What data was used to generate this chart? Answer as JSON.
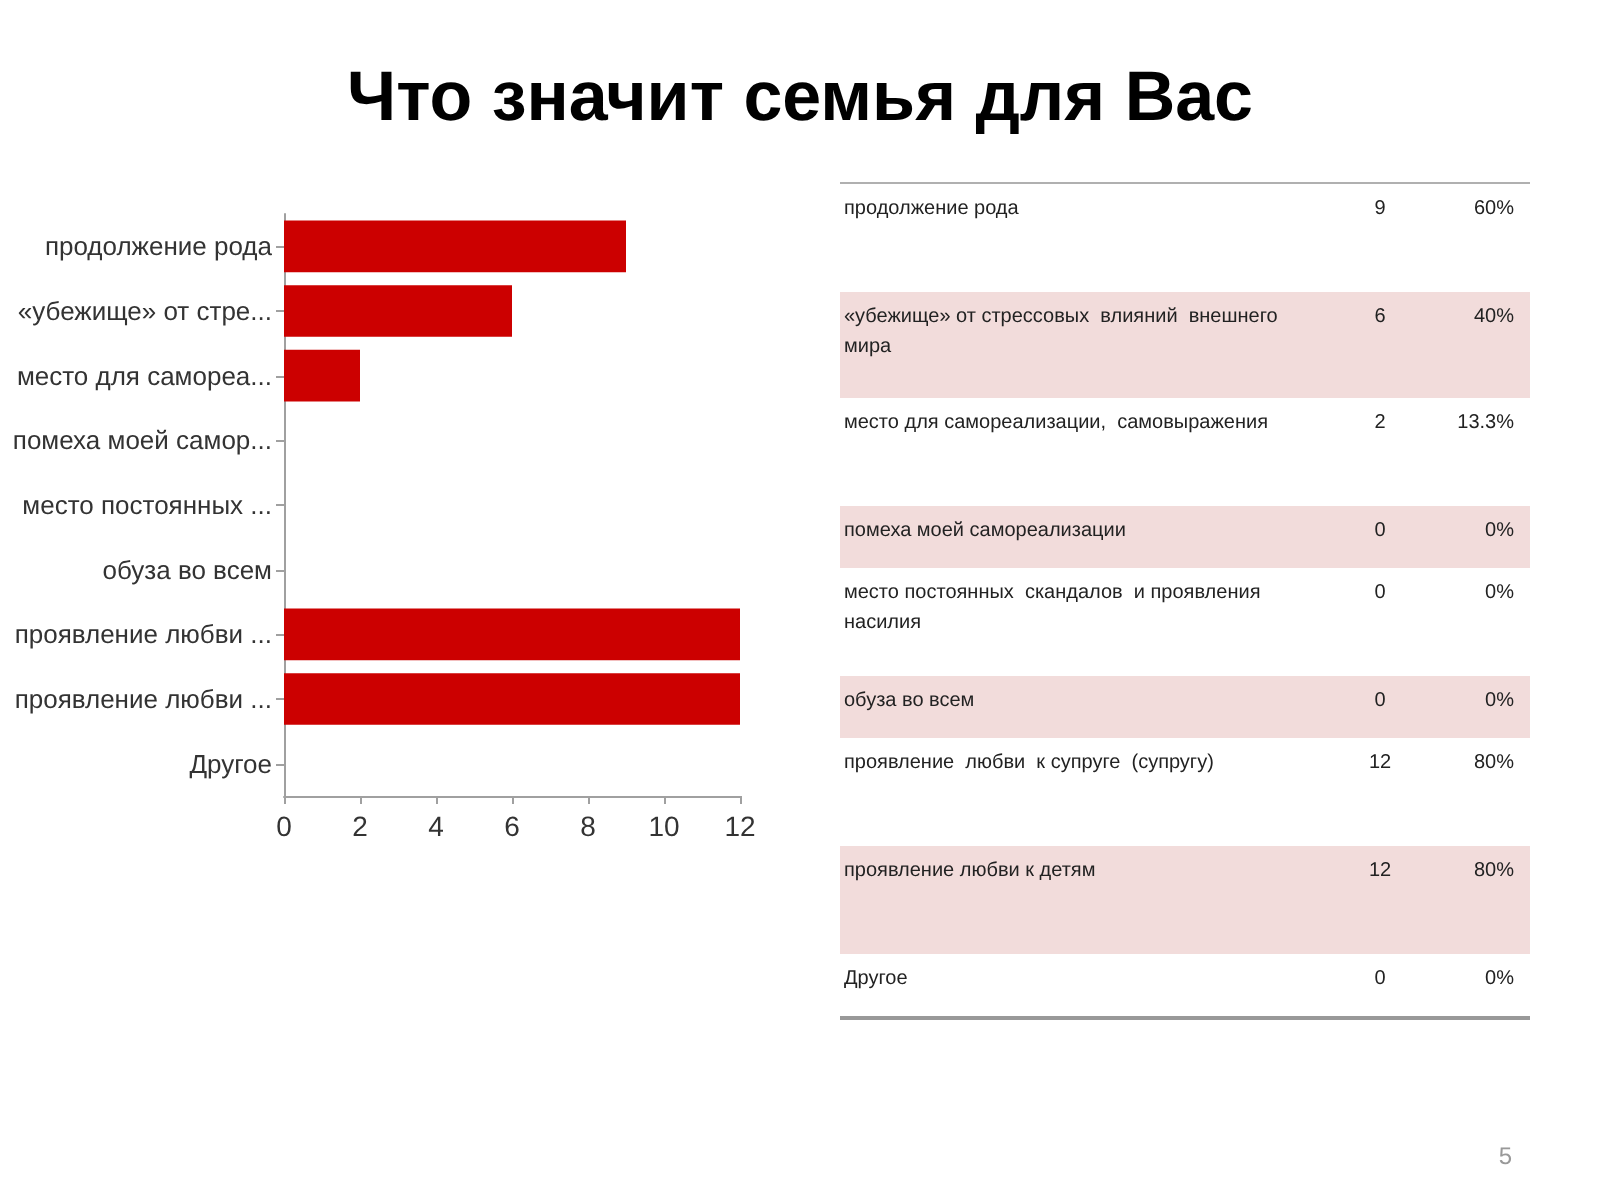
{
  "chart_data": [
    {
      "type": "bar",
      "orientation": "horizontal",
      "title": "Что значит семья для Вас",
      "categories": [
        "продолжение рода",
        "«убежище» от стре...",
        "место для самореа...",
        "помеха моей самор...",
        "место постоянных ...",
        "обуза во всем",
        "проявление любви ...",
        "проявление любви ...",
        "Другое"
      ],
      "values": [
        9,
        6,
        2,
        0,
        0,
        0,
        12,
        12,
        0
      ],
      "color": "#cc0000",
      "xlim": [
        0,
        12
      ],
      "xticks": [
        0,
        2,
        4,
        6,
        8,
        10,
        12
      ],
      "grid": false,
      "annotations": [
        "5"
      ]
    },
    {
      "type": "other",
      "categories": [
        "продолжение рода",
        "«убежище» от стрессовых  влияний  внешнего мира",
        "место для самореализации,  самовыражения",
        "помеха моей самореализации",
        "место постоянных  скандалов  и проявления насилия",
        "обуза во всем",
        "проявление  любви  к супруге  (супругу)",
        "проявление любви к детям",
        "Другое"
      ],
      "series": [
        {
          "colors": [
            "#ffffff",
            "#f2dcdb",
            "#ffffff",
            "#f2dcdb",
            "#ffffff",
            "#f2dcdb",
            "#ffffff",
            "#f2dcdb",
            "#ffffff"
          ],
          "values": [
            9,
            6,
            2,
            0,
            0,
            0,
            12,
            12,
            0
          ]
        },
        {
          "values": [
            60,
            40,
            13.3,
            0,
            0,
            0,
            80,
            80,
            0
          ],
          "value_labels": [
            "60%",
            "40%",
            "13.3%",
            "0%",
            "0%",
            "0%",
            "80%",
            "80%",
            "0%"
          ]
        }
      ],
      "data_labels": true
    }
  ]
}
